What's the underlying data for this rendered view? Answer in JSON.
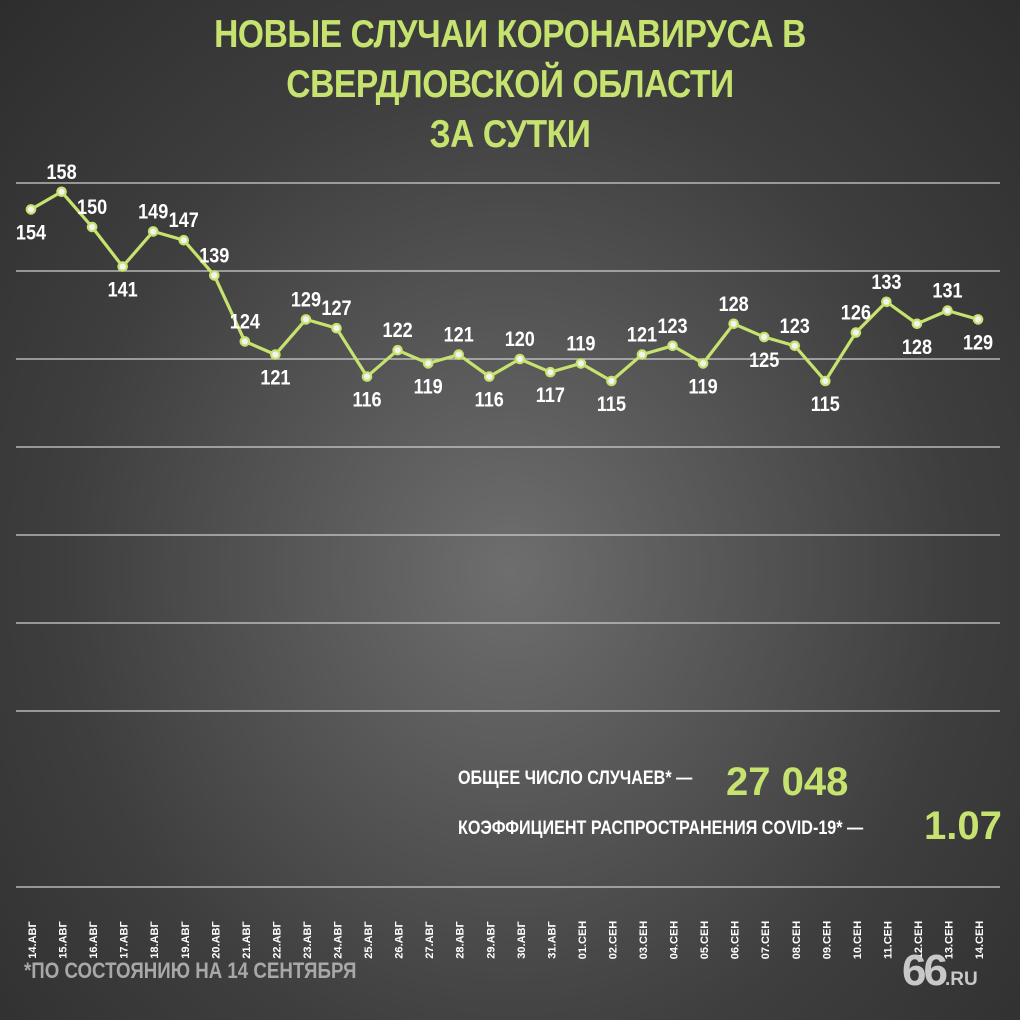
{
  "title_line1": "НОВЫЕ СЛУЧАИ КОРОНАВИРУСА В СВЕРДЛОВСКОЙ ОБЛАСТИ",
  "title_line2": "ЗА СУТКИ",
  "stats": {
    "total_label": "ОБЩЕЕ ЧИСЛО СЛУЧАЕВ* —",
    "total_value": "27 048",
    "rt_label": "КОЭФФИЦИЕНТ РАСПРОСТРАНЕНИЯ COVID-19* —",
    "rt_value": "1.07"
  },
  "footnote": "*ПО СОСТОЯНИЮ НА 14 СЕНТЯБРЯ",
  "logo": {
    "number": "66",
    "domain": ".RU"
  },
  "colors": {
    "accent": "#c6e36f",
    "text": "#ffffff",
    "grid": "#d0d0d0"
  },
  "chart_data": {
    "type": "line",
    "title": "НОВЫЕ СЛУЧАИ КОРОНАВИРУСА В СВЕРДЛОВСКОЙ ОБЛАСТИ ЗА СУТКИ",
    "categories": [
      "14.АВГ",
      "15.АВГ",
      "16.АВГ",
      "17.АВГ",
      "18.АВГ",
      "19.АВГ",
      "20.АВГ",
      "21.АВГ",
      "22.АВГ",
      "23.АВГ",
      "24.АВГ",
      "25.АВГ",
      "26.АВГ",
      "27.АВГ",
      "28.АВГ",
      "29.АВГ",
      "30.АВГ",
      "31.АВГ",
      "01.СЕН",
      "02.СЕН",
      "03.СЕН",
      "04.СЕН",
      "05.СЕН",
      "06.СЕН",
      "07.СЕН",
      "08.СЕН",
      "09.СЕН",
      "10.СЕН",
      "11.СЕН",
      "12.СЕН",
      "13.СЕН",
      "14.СЕН"
    ],
    "values": [
      154,
      158,
      150,
      141,
      149,
      147,
      139,
      124,
      121,
      129,
      127,
      116,
      122,
      119,
      121,
      116,
      120,
      117,
      119,
      115,
      121,
      123,
      119,
      128,
      125,
      123,
      115,
      126,
      133,
      128,
      131,
      129
    ],
    "label_position": [
      "below",
      "above",
      "above",
      "below",
      "above",
      "above",
      "above",
      "above",
      "below",
      "above",
      "above",
      "below",
      "above",
      "below",
      "above",
      "below",
      "above",
      "below",
      "above",
      "below",
      "above",
      "above",
      "below",
      "above",
      "below",
      "above",
      "below",
      "above",
      "above",
      "below",
      "above",
      "below"
    ],
    "ylim": [
      0,
      160
    ],
    "grid": true,
    "legend": "none"
  }
}
